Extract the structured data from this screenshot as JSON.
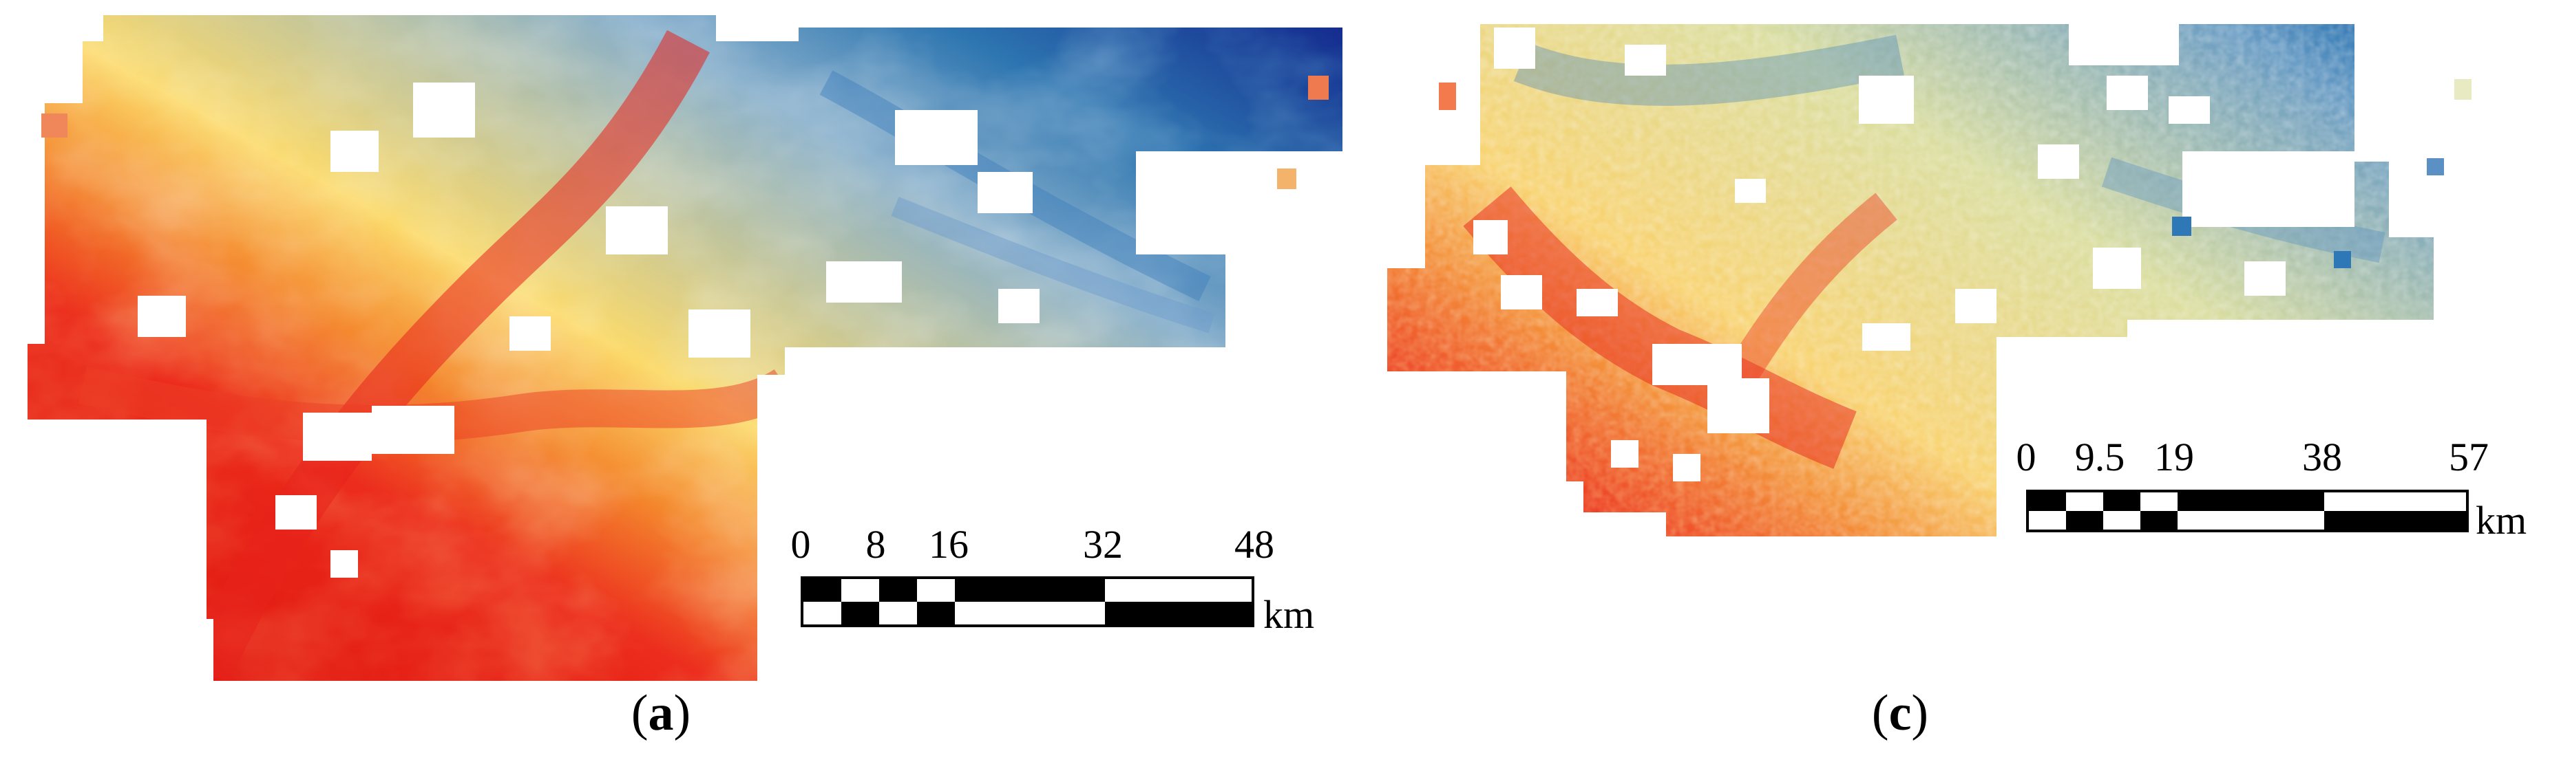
{
  "figure": {
    "panels": [
      {
        "id": "a",
        "caption_open": "(",
        "caption_letter": "a",
        "caption_close": ")",
        "scale_ticks": [
          "0",
          "8",
          "16",
          "32",
          "48"
        ],
        "scale_unit": "km"
      },
      {
        "id": "c",
        "caption_open": "(",
        "caption_letter": "c",
        "caption_close": ")",
        "scale_ticks": [
          "0",
          "9.5",
          "19",
          "38",
          "57"
        ],
        "scale_unit": "km"
      }
    ]
  },
  "colors": {
    "low": "#2166ac",
    "mid_low": "#a6c4dc",
    "mid": "#ffffbf",
    "mid_high": "#fdae61",
    "high": "#e8231c",
    "background": "#ffffff"
  }
}
